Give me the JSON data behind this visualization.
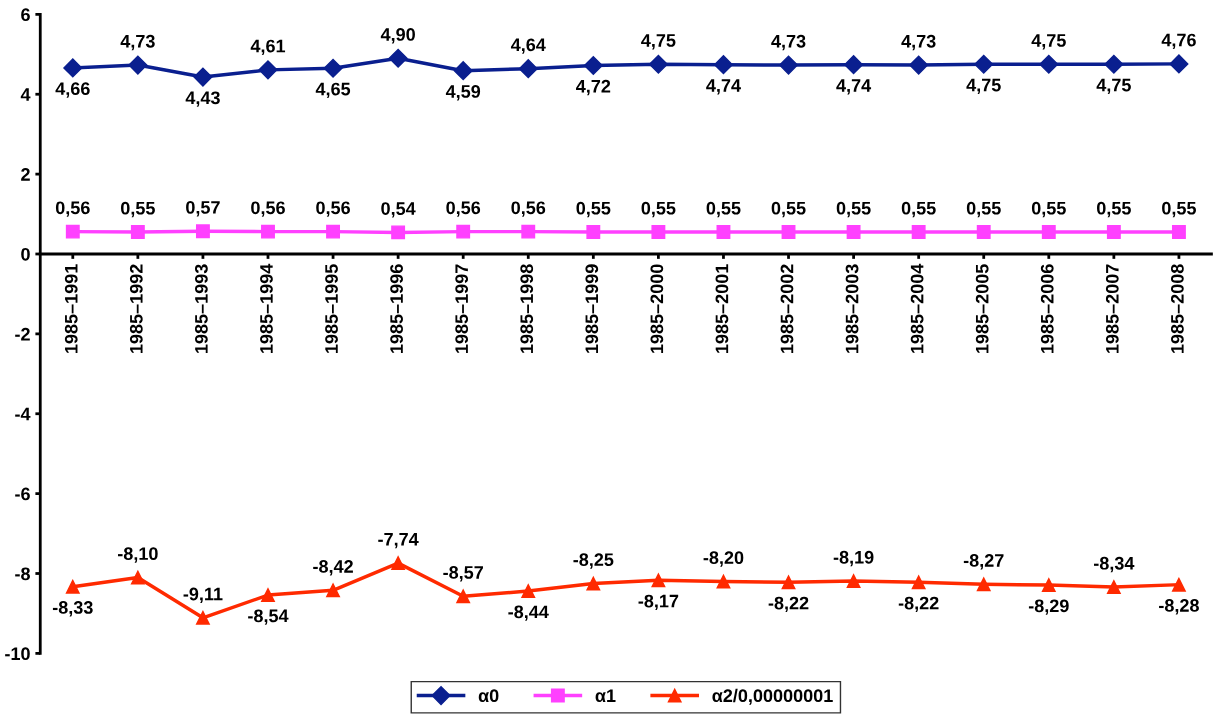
{
  "chart_data": {
    "type": "line",
    "categories": [
      "1985–1991",
      "1985–1992",
      "1985–1993",
      "1985–1994",
      "1985–1995",
      "1985–1996",
      "1985–1997",
      "1985–1998",
      "1985–1999",
      "1985–2000",
      "1985–2001",
      "1985–2002",
      "1985–2003",
      "1985–2004",
      "1985–2005",
      "1985–2006",
      "1985–2007",
      "1985–2008"
    ],
    "series": [
      {
        "name": "α0",
        "color": "#0a1f8f",
        "marker": "diamond",
        "values": [
          4.66,
          4.73,
          4.43,
          4.61,
          4.65,
          4.9,
          4.59,
          4.64,
          4.72,
          4.75,
          4.74,
          4.73,
          4.74,
          4.73,
          4.75,
          4.75,
          4.75,
          4.76
        ],
        "value_labels": [
          "4,66",
          "4,73",
          "4,43",
          "4,61",
          "4,65",
          "4,90",
          "4,59",
          "4,64",
          "4,72",
          "4,75",
          "4,74",
          "4,73",
          "4,74",
          "4,73",
          "4,75",
          "4,75",
          "4,75",
          "4,76"
        ]
      },
      {
        "name": "α1",
        "color": "#ff40ff",
        "marker": "square",
        "values": [
          0.56,
          0.55,
          0.57,
          0.56,
          0.56,
          0.54,
          0.56,
          0.56,
          0.55,
          0.55,
          0.55,
          0.55,
          0.55,
          0.55,
          0.55,
          0.55,
          0.55,
          0.55
        ],
        "value_labels": [
          "0,56",
          "0,55",
          "0,57",
          "0,56",
          "0,56",
          "0,54",
          "0,56",
          "0,56",
          "0,55",
          "0,55",
          "0,55",
          "0,55",
          "0,55",
          "0,55",
          "0,55",
          "0,55",
          "0,55",
          "0,55"
        ]
      },
      {
        "name": "α2/0,00000001",
        "color": "#ff2a00",
        "marker": "triangle",
        "values": [
          -8.33,
          -8.1,
          -9.11,
          -8.54,
          -8.42,
          -7.74,
          -8.57,
          -8.44,
          -8.25,
          -8.17,
          -8.2,
          -8.22,
          -8.19,
          -8.22,
          -8.27,
          -8.29,
          -8.34,
          -8.28
        ],
        "value_labels": [
          "-8,33",
          "-8,10",
          "-9,11",
          "-8,54",
          "-8,42",
          "-7,74",
          "-8,57",
          "-8,44",
          "-8,25",
          "-8,17",
          "-8,20",
          "-8,22",
          "-8,19",
          "-8,22",
          "-8,27",
          "-8,29",
          "-8,34",
          "-8,28"
        ]
      }
    ],
    "ylim": [
      -10,
      6
    ],
    "yticks": [
      -10,
      -8,
      -6,
      -4,
      -2,
      0,
      2,
      4,
      6
    ],
    "grid": false,
    "legend": "bottom",
    "line_style": "solid"
  }
}
